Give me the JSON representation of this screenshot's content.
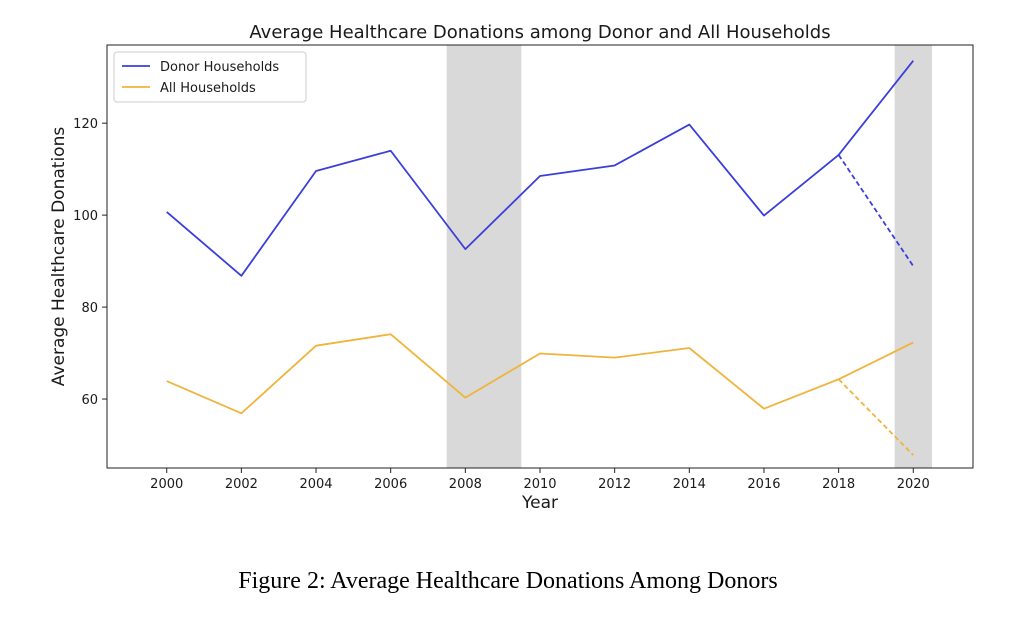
{
  "chart_data": {
    "type": "line",
    "title": "Average Healthcare Donations among Donor and All Households",
    "xlabel": "Year",
    "ylabel": "Average Healthcare Donations",
    "x": [
      2000,
      2002,
      2004,
      2006,
      2008,
      2010,
      2012,
      2014,
      2016,
      2018,
      2020
    ],
    "xlim": [
      1998.4,
      2021.6
    ],
    "ylim": [
      45,
      137
    ],
    "x_ticks": [
      2000,
      2002,
      2004,
      2006,
      2008,
      2010,
      2012,
      2014,
      2016,
      2018,
      2020
    ],
    "y_ticks": [
      60,
      80,
      100,
      120
    ],
    "grid": false,
    "legend_position": "top-left",
    "shaded_regions": [
      {
        "x_start": 2007.5,
        "x_end": 2009.5,
        "color": "#d9d9d9"
      },
      {
        "x_start": 2019.5,
        "x_end": 2020.5,
        "color": "#d9d9d9"
      }
    ],
    "series": [
      {
        "name": "Donor Households",
        "color": "#3a3fd9",
        "values": [
          100.7,
          86.8,
          109.6,
          114.0,
          92.6,
          108.5,
          110.8,
          119.7,
          99.9,
          113.1,
          133.6
        ],
        "dashed_projection": {
          "x": [
            2018,
            2020
          ],
          "values": [
            113.1,
            88.9
          ]
        }
      },
      {
        "name": "All Households",
        "color": "#f0b43c",
        "values": [
          63.9,
          56.9,
          71.6,
          74.1,
          60.3,
          69.9,
          69.0,
          71.1,
          57.9,
          64.3,
          72.3
        ],
        "dashed_projection": {
          "x": [
            2018,
            2020
          ],
          "values": [
            64.3,
            47.8
          ]
        }
      }
    ]
  },
  "caption": "Figure 2: Average Healthcare Donations Among Donors"
}
